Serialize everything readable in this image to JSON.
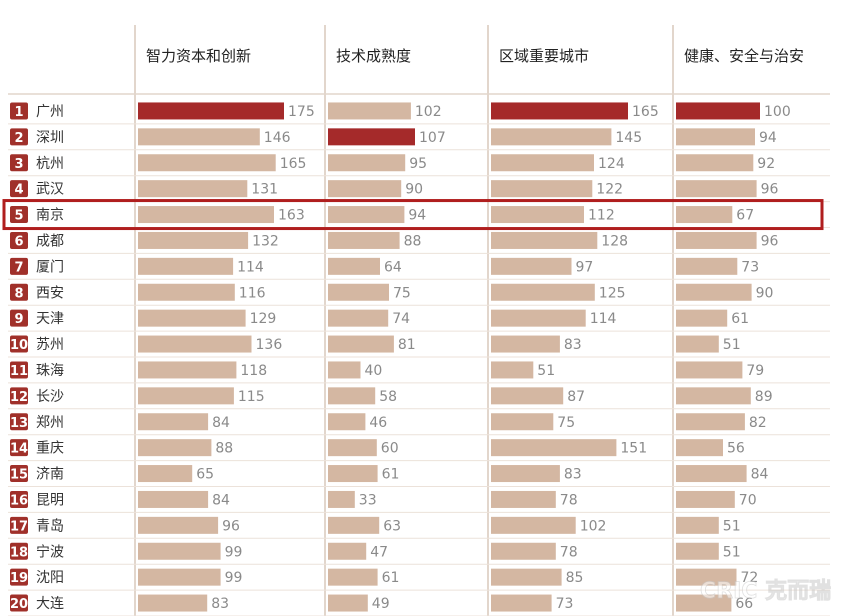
{
  "chart_data": {
    "type": "bar",
    "columns": [
      "智力资本和创新",
      "技术成熟度",
      "区域重要城市",
      "健康、安全与治安"
    ],
    "rows": [
      {
        "rank": "1",
        "city": "广州",
        "values": [
          175,
          102,
          165,
          100
        ]
      },
      {
        "rank": "2",
        "city": "深圳",
        "values": [
          146,
          107,
          145,
          94
        ]
      },
      {
        "rank": "3",
        "city": "杭州",
        "values": [
          165,
          95,
          124,
          92
        ]
      },
      {
        "rank": "4",
        "city": "武汉",
        "values": [
          131,
          90,
          122,
          96
        ]
      },
      {
        "rank": "5",
        "city": "南京",
        "values": [
          163,
          94,
          112,
          67
        ]
      },
      {
        "rank": "6",
        "city": "成都",
        "values": [
          132,
          88,
          128,
          96
        ]
      },
      {
        "rank": "7",
        "city": "厦门",
        "values": [
          114,
          64,
          97,
          73
        ]
      },
      {
        "rank": "8",
        "city": "西安",
        "values": [
          116,
          75,
          125,
          90
        ]
      },
      {
        "rank": "9",
        "city": "天津",
        "values": [
          129,
          74,
          114,
          61
        ]
      },
      {
        "rank": "10",
        "city": "苏州",
        "values": [
          136,
          81,
          83,
          51
        ]
      },
      {
        "rank": "11",
        "city": "珠海",
        "values": [
          118,
          40,
          51,
          79
        ]
      },
      {
        "rank": "12",
        "city": "长沙",
        "values": [
          115,
          58,
          87,
          89
        ]
      },
      {
        "rank": "13",
        "city": "郑州",
        "values": [
          84,
          46,
          75,
          82
        ]
      },
      {
        "rank": "14",
        "city": "重庆",
        "values": [
          88,
          60,
          151,
          56
        ]
      },
      {
        "rank": "15",
        "city": "济南",
        "values": [
          65,
          61,
          83,
          84
        ]
      },
      {
        "rank": "16",
        "city": "昆明",
        "values": [
          84,
          33,
          78,
          70
        ]
      },
      {
        "rank": "17",
        "city": "青岛",
        "values": [
          96,
          63,
          102,
          51
        ]
      },
      {
        "rank": "18",
        "city": "宁波",
        "values": [
          99,
          47,
          78,
          51
        ]
      },
      {
        "rank": "19",
        "city": "沈阳",
        "values": [
          99,
          61,
          85,
          72
        ]
      },
      {
        "rank": "20",
        "city": "大连",
        "values": [
          83,
          49,
          73,
          66
        ]
      }
    ],
    "highlighted_row_rank": "5",
    "colors": {
      "bar": "#d4b7a2",
      "bar_top": "#a52a2a",
      "rank_badge": "#a0302a",
      "highlight_border": "#b01e1e",
      "column_separator": "#e2d6cc",
      "row_line": "#ece2da"
    },
    "watermark": "CRIC 克而瑞"
  }
}
